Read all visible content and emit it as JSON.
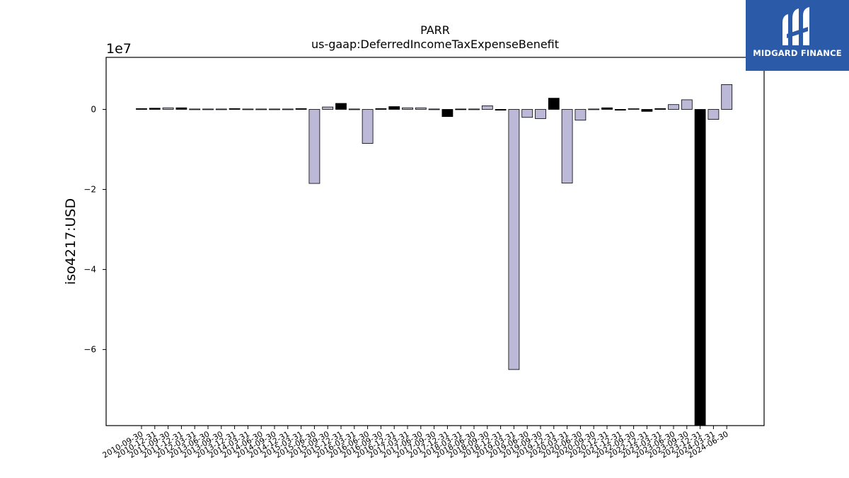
{
  "brand": {
    "name": "MIDGARD FINANCE",
    "icon": "midgard-logo-icon",
    "color": "#2b5aa8"
  },
  "chart_data": {
    "type": "bar",
    "title": "PARR",
    "subtitle": "us-gaap:DeferredIncomeTaxExpenseBenefit",
    "ylabel": "iso4217:USD",
    "xlabel": "",
    "y_multiplier_label": "1e7",
    "ylim": [
      -7.9,
      1.3
    ],
    "yticks": [
      0,
      -2,
      -4,
      -6
    ],
    "ytick_labels": [
      "0",
      "−2",
      "−4",
      "−6"
    ],
    "grid": false,
    "legend": "none",
    "colors": {
      "light": "#bcb8d8",
      "dark": "#000000"
    },
    "categories": [
      "2010-09-30",
      "2010-12-31",
      "2011-09-30",
      "2011-12-31",
      "2012-03-31",
      "2013-06-30",
      "2013-09-30",
      "2013-12-31",
      "2014-03-31",
      "2014-06-30",
      "2014-09-30",
      "2014-12-31",
      "2015-03-31",
      "2015-06-30",
      "2015-09-30",
      "2015-12-31",
      "2016-03-31",
      "2016-06-30",
      "2016-09-30",
      "2016-12-31",
      "2017-03-31",
      "2017-06-30",
      "2017-09-30",
      "2017-12-31",
      "2018-03-31",
      "2018-06-30",
      "2018-09-30",
      "2018-12-31",
      "2019-03-31",
      "2019-06-30",
      "2019-09-30",
      "2019-12-31",
      "2020-03-31",
      "2020-06-30",
      "2020-09-30",
      "2020-12-31",
      "2021-12-31",
      "2022-09-30",
      "2022-12-31",
      "2023-03-31",
      "2023-06-30",
      "2023-09-30",
      "2023-12-31",
      "2024-03-31",
      "2024-06-30"
    ],
    "values": [
      0.02,
      0.03,
      0.04,
      0.04,
      0.01,
      0.01,
      0.01,
      0.02,
      0.01,
      0.01,
      0.01,
      0.01,
      0.02,
      -1.85,
      0.06,
      0.15,
      0.01,
      -0.85,
      0.02,
      0.07,
      0.04,
      0.04,
      0.01,
      -0.18,
      0.01,
      0.01,
      0.09,
      -0.02,
      -6.5,
      -0.2,
      -0.23,
      0.28,
      -1.84,
      -0.27,
      0.01,
      0.04,
      -0.02,
      0.02,
      -0.05,
      0.02,
      0.12,
      0.24,
      -7.9,
      -0.25,
      0.62
    ],
    "bar_colors": [
      "dark",
      "dark",
      "light",
      "dark",
      "light",
      "light",
      "light",
      "dark",
      "light",
      "light",
      "light",
      "light",
      "dark",
      "light",
      "light",
      "dark",
      "light",
      "light",
      "dark",
      "dark",
      "light",
      "light",
      "light",
      "dark",
      "dark",
      "light",
      "light",
      "dark",
      "light",
      "light",
      "light",
      "dark",
      "light",
      "light",
      "light",
      "dark",
      "dark",
      "light",
      "dark",
      "dark",
      "light",
      "light",
      "dark",
      "light",
      "light"
    ]
  }
}
